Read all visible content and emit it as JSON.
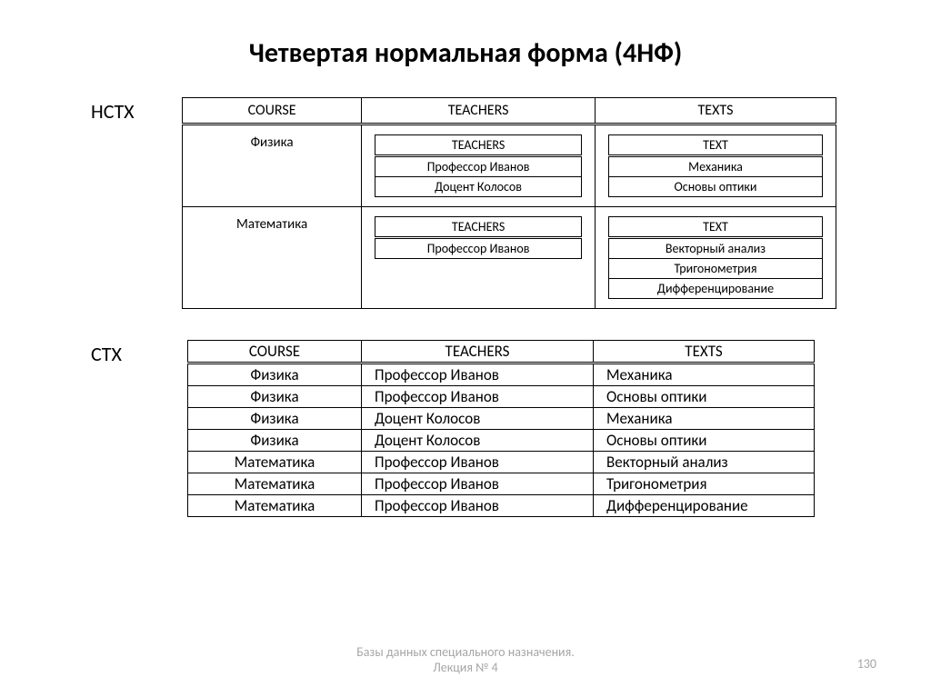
{
  "title": "Четвертая нормальная форма (4НФ)",
  "nstx": {
    "label": "НСТХ",
    "headers": [
      "COURSE",
      "TEACHERS",
      "TEXTS"
    ],
    "rows": [
      {
        "course": "Физика",
        "teachers": {
          "header": "TEACHERS",
          "items": [
            "Профессор Иванов",
            "Доцент Колосов"
          ]
        },
        "texts": {
          "header": "TEXT",
          "items": [
            "Механика",
            "Основы оптики"
          ]
        }
      },
      {
        "course": "Математика",
        "teachers": {
          "header": "TEACHERS",
          "items": [
            "Профессор Иванов"
          ]
        },
        "texts": {
          "header": "TEXT",
          "items": [
            "Векторный анализ",
            "Тригонометрия",
            "Дифференцирование"
          ]
        }
      }
    ]
  },
  "ctx": {
    "label": "СТХ",
    "headers": [
      "COURSE",
      "TEACHERS",
      "TEXTS"
    ],
    "rows": [
      [
        "Физика",
        "Профессор Иванов",
        "Механика"
      ],
      [
        "Физика",
        "Профессор Иванов",
        "Основы оптики"
      ],
      [
        "Физика",
        "Доцент Колосов",
        "Механика"
      ],
      [
        "Физика",
        "Доцент Колосов",
        "Основы оптики"
      ],
      [
        "Математика",
        "Профессор Иванов",
        "Векторный анализ"
      ],
      [
        "Математика",
        "Профессор Иванов",
        "Тригонометрия"
      ],
      [
        "Математика",
        "Профессор Иванов",
        "Дифференцирование"
      ]
    ]
  },
  "footer": {
    "line1": "Базы данных специального назначения.",
    "line2": "Лекция № 4",
    "page": "130"
  },
  "style": {
    "background": "#ffffff",
    "text_color": "#000000",
    "footer_color": "#a6a6a6",
    "border_color": "#000000",
    "title_fontsize": 30,
    "label_fontsize": 22,
    "table_fontsize": 17,
    "inner_fontsize": 14
  }
}
